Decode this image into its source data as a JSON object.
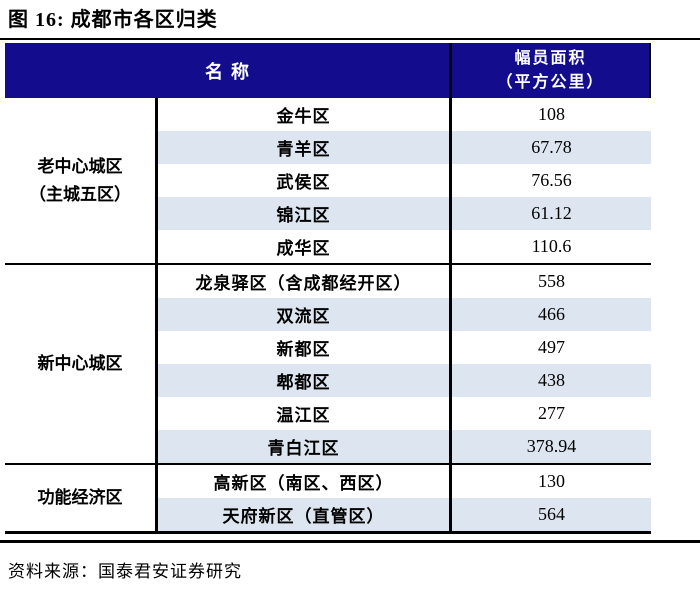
{
  "figure": {
    "title": "图 16: 成都市各区归类",
    "source": "资料来源：国泰君安证券研究"
  },
  "colors": {
    "header_bg": "#130d8e",
    "header_text": "#ffffff",
    "stripe_bg": "#dde6f0",
    "border": "#000000"
  },
  "table": {
    "header": {
      "name_col": "名称",
      "area_col_line1": "幅员面积",
      "area_col_line2": "（平方公里）"
    },
    "groups": [
      {
        "label_lines": [
          "老中心城区",
          "（主城五区）"
        ],
        "rows": [
          {
            "name": "金牛区",
            "area": "108"
          },
          {
            "name": "青羊区",
            "area": "67.78"
          },
          {
            "name": "武侯区",
            "area": "76.56"
          },
          {
            "name": "锦江区",
            "area": "61.12"
          },
          {
            "name": "成华区",
            "area": "110.6"
          }
        ]
      },
      {
        "label_lines": [
          "新中心城区"
        ],
        "rows": [
          {
            "name": "龙泉驿区（含成都经开区）",
            "area": "558"
          },
          {
            "name": "双流区",
            "area": "466"
          },
          {
            "name": "新都区",
            "area": "497"
          },
          {
            "name": "郫都区",
            "area": "438"
          },
          {
            "name": "温江区",
            "area": "277"
          },
          {
            "name": "青白江区",
            "area": "378.94"
          }
        ]
      },
      {
        "label_lines": [
          "功能经济区"
        ],
        "rows": [
          {
            "name": "高新区（南区、西区）",
            "area": "130"
          },
          {
            "name": "天府新区（直管区）",
            "area": "564"
          }
        ]
      }
    ]
  }
}
